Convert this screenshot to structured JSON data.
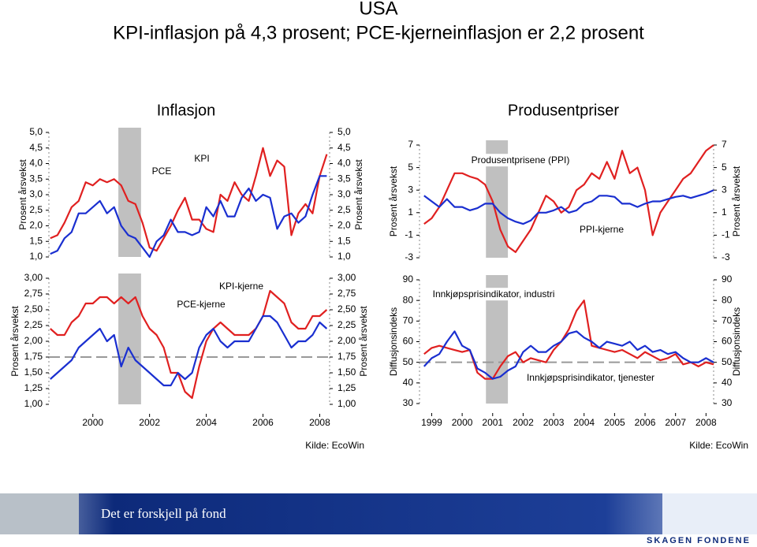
{
  "header": {
    "title": "USA",
    "subtitle": "KPI-inflasjon på 4,3 prosent; PCE-kjerneinflasjon er 2,2 prosent"
  },
  "chart_data": [
    {
      "type": "line",
      "title": "Inflasjon",
      "ylabel": "Prosent årsvekst",
      "y2label": "Prosent årsvekst",
      "xlim": [
        1998.45,
        2008.35
      ],
      "ylim": [
        1,
        5
      ],
      "yticks": [
        {
          "value": 1,
          "label": "1,0"
        },
        {
          "value": 1.5,
          "label": "1,5"
        },
        {
          "value": 2,
          "label": "2,0"
        },
        {
          "value": 2.5,
          "label": "2,5"
        },
        {
          "value": 3,
          "label": "3,0"
        },
        {
          "value": 3.5,
          "label": "3,5"
        },
        {
          "value": 4,
          "label": "4,0"
        },
        {
          "value": 4.5,
          "label": "4,5"
        },
        {
          "value": 5,
          "label": "5,0"
        }
      ],
      "recession": [
        2000.9,
        2001.7
      ],
      "x": [
        1998.5,
        1998.75,
        1999,
        1999.25,
        1999.5,
        1999.75,
        2000,
        2000.25,
        2000.5,
        2000.75,
        2001,
        2001.25,
        2001.5,
        2001.75,
        2002,
        2002.25,
        2002.5,
        2002.75,
        2003,
        2003.25,
        2003.5,
        2003.75,
        2004,
        2004.25,
        2004.5,
        2004.75,
        2005,
        2005.25,
        2005.5,
        2005.75,
        2006,
        2006.25,
        2006.5,
        2006.75,
        2007,
        2007.25,
        2007.5,
        2007.75,
        2008,
        2008.25
      ],
      "series": [
        {
          "name": "KPI",
          "color": "#e02020",
          "values": [
            1.6,
            1.7,
            2.1,
            2.6,
            2.8,
            3.4,
            3.3,
            3.5,
            3.4,
            3.5,
            3.3,
            2.8,
            2.7,
            2.1,
            1.3,
            1.2,
            1.6,
            2.0,
            2.5,
            2.9,
            2.2,
            2.2,
            1.9,
            1.8,
            3.0,
            2.8,
            3.4,
            3.0,
            2.8,
            3.6,
            4.5,
            3.6,
            4.1,
            3.9,
            1.7,
            2.4,
            2.7,
            2.4,
            3.6,
            4.3
          ]
        },
        {
          "name": "PCE",
          "color": "#1a2fd0",
          "values": [
            1.1,
            1.2,
            1.6,
            1.8,
            2.4,
            2.4,
            2.6,
            2.8,
            2.4,
            2.6,
            2.0,
            1.7,
            1.6,
            1.3,
            1.0,
            1.5,
            1.7,
            2.2,
            1.8,
            1.8,
            1.7,
            1.8,
            2.6,
            2.3,
            2.8,
            2.3,
            2.3,
            2.9,
            3.2,
            2.8,
            3.0,
            2.9,
            1.9,
            2.3,
            2.4,
            2.1,
            2.3,
            3.0,
            3.6,
            3.6
          ]
        }
      ]
    },
    {
      "type": "line",
      "ylabel": "Prosent årsvekst",
      "y2label": "Prosent årsvekst",
      "source": "Kilde: EcoWin",
      "xlim": [
        1998.45,
        2008.35
      ],
      "xticks": [
        2000,
        2002,
        2004,
        2006,
        2008
      ],
      "ylim": [
        1,
        3
      ],
      "yticks": [
        {
          "value": 1,
          "label": "1,00"
        },
        {
          "value": 1.25,
          "label": "1,25"
        },
        {
          "value": 1.5,
          "label": "1,50"
        },
        {
          "value": 1.75,
          "label": "1,75"
        },
        {
          "value": 2,
          "label": "2,00"
        },
        {
          "value": 2.25,
          "label": "2,25"
        },
        {
          "value": 2.5,
          "label": "2,50"
        },
        {
          "value": 2.75,
          "label": "2,75"
        },
        {
          "value": 3,
          "label": "3,00"
        }
      ],
      "recession": [
        2000.9,
        2001.7
      ],
      "hline": 1.75,
      "x": [
        1998.5,
        1998.75,
        1999,
        1999.25,
        1999.5,
        1999.75,
        2000,
        2000.25,
        2000.5,
        2000.75,
        2001,
        2001.25,
        2001.5,
        2001.75,
        2002,
        2002.25,
        2002.5,
        2002.75,
        2003,
        2003.25,
        2003.5,
        2003.75,
        2004,
        2004.25,
        2004.5,
        2004.75,
        2005,
        2005.25,
        2005.5,
        2005.75,
        2006,
        2006.25,
        2006.5,
        2006.75,
        2007,
        2007.25,
        2007.5,
        2007.75,
        2008,
        2008.25
      ],
      "series": [
        {
          "name": "KPI-kjerne",
          "color": "#e02020",
          "values": [
            2.2,
            2.1,
            2.1,
            2.3,
            2.4,
            2.6,
            2.6,
            2.7,
            2.7,
            2.6,
            2.7,
            2.6,
            2.7,
            2.4,
            2.2,
            2.1,
            1.9,
            1.5,
            1.5,
            1.2,
            1.1,
            1.6,
            2.0,
            2.2,
            2.3,
            2.2,
            2.1,
            2.1,
            2.1,
            2.2,
            2.4,
            2.8,
            2.7,
            2.6,
            2.3,
            2.2,
            2.2,
            2.4,
            2.4,
            2.5
          ]
        },
        {
          "name": "PCE-kjerne",
          "color": "#1a2fd0",
          "values": [
            1.4,
            1.5,
            1.6,
            1.7,
            1.9,
            2.0,
            2.1,
            2.2,
            2.0,
            2.1,
            1.6,
            1.9,
            1.7,
            1.6,
            1.5,
            1.4,
            1.3,
            1.3,
            1.5,
            1.4,
            1.5,
            1.9,
            2.1,
            2.2,
            2.0,
            1.9,
            2.0,
            2.0,
            2.0,
            2.2,
            2.4,
            2.4,
            2.3,
            2.1,
            1.9,
            2.0,
            2.0,
            2.1,
            2.3,
            2.2
          ]
        }
      ]
    },
    {
      "type": "line",
      "title": "Produsentpriser",
      "ylabel": "Prosent årsvekst",
      "y2label": "Prosent årsvekst",
      "xlim": [
        1998.6,
        2008.25
      ],
      "ylim": [
        -3,
        7
      ],
      "yticks": [
        -3,
        -1,
        1,
        3,
        5,
        7
      ],
      "recession": [
        2000.78,
        2001.5
      ],
      "x": [
        1998.75,
        1999,
        1999.25,
        1999.5,
        1999.75,
        2000,
        2000.25,
        2000.5,
        2000.75,
        2001,
        2001.25,
        2001.5,
        2001.75,
        2002,
        2002.25,
        2002.5,
        2002.75,
        2003,
        2003.25,
        2003.5,
        2003.75,
        2004,
        2004.25,
        2004.5,
        2004.75,
        2005,
        2005.25,
        2005.5,
        2005.75,
        2006,
        2006.25,
        2006.5,
        2006.75,
        2007,
        2007.25,
        2007.5,
        2007.75,
        2008,
        2008.25
      ],
      "series": [
        {
          "name": "Produsentprisene (PPI)",
          "color": "#e02020",
          "values": [
            0.0,
            0.5,
            1.5,
            3.0,
            4.5,
            4.5,
            4.2,
            4.0,
            3.5,
            2.0,
            -0.5,
            -2.0,
            -2.5,
            -1.5,
            -0.5,
            1.0,
            2.5,
            2.0,
            1.0,
            1.5,
            3.0,
            3.5,
            4.5,
            4.0,
            5.5,
            4.0,
            6.5,
            4.5,
            5.0,
            3.0,
            -1.0,
            1.0,
            2.0,
            3.0,
            4.0,
            4.5,
            5.5,
            6.5,
            7.0
          ]
        },
        {
          "name": "PPI-kjerne",
          "color": "#1a2fd0",
          "values": [
            2.5,
            2.0,
            1.5,
            2.2,
            1.5,
            1.5,
            1.2,
            1.4,
            1.8,
            1.8,
            1.0,
            0.5,
            0.2,
            0.0,
            0.3,
            1.0,
            1.0,
            1.2,
            1.5,
            1.0,
            1.2,
            1.8,
            2.0,
            2.5,
            2.5,
            2.4,
            1.8,
            1.8,
            1.5,
            1.8,
            2.0,
            2.0,
            2.2,
            2.4,
            2.5,
            2.3,
            2.5,
            2.7,
            3.0
          ]
        }
      ]
    },
    {
      "type": "line",
      "ylabel": "Diffusjonsindeks",
      "y2label": "Diffusjonsindeks",
      "source": "Kilde: EcoWin",
      "xlim": [
        1998.6,
        2008.25
      ],
      "xticks": [
        1999,
        2000,
        2001,
        2002,
        2003,
        2004,
        2005,
        2006,
        2007,
        2008
      ],
      "ylim": [
        30,
        90
      ],
      "yticks": [
        30,
        40,
        50,
        60,
        70,
        80,
        90
      ],
      "recession": [
        2000.78,
        2001.5
      ],
      "hline": 50,
      "x": [
        1998.75,
        1999,
        1999.25,
        1999.5,
        1999.75,
        2000,
        2000.25,
        2000.5,
        2000.75,
        2001,
        2001.25,
        2001.5,
        2001.75,
        2002,
        2002.25,
        2002.5,
        2002.75,
        2003,
        2003.25,
        2003.5,
        2003.75,
        2004,
        2004.25,
        2004.5,
        2004.75,
        2005,
        2005.25,
        2005.5,
        2005.75,
        2006,
        2006.25,
        2006.5,
        2006.75,
        2007,
        2007.25,
        2007.5,
        2007.75,
        2008,
        2008.25
      ],
      "series": [
        {
          "name": "Innkjøpsprisindikator, industri",
          "color": "#e02020",
          "values": [
            54,
            57,
            58,
            57,
            56,
            55,
            56,
            45,
            42,
            42,
            48,
            53,
            55,
            50,
            52,
            51,
            50,
            56,
            60,
            66,
            75,
            80,
            58,
            57,
            56,
            55,
            56,
            54,
            52,
            55,
            53,
            51,
            52,
            54,
            49,
            50,
            48,
            50,
            49
          ]
        },
        {
          "name": "Innkjøpsprisindikator, tjenester",
          "color": "#1a2fd0",
          "values": [
            48,
            52,
            54,
            60,
            65,
            58,
            56,
            47,
            45,
            42,
            43,
            46,
            48,
            55,
            58,
            55,
            55,
            58,
            60,
            64,
            65,
            62,
            60,
            57,
            60,
            59,
            58,
            60,
            56,
            58,
            55,
            56,
            54,
            55,
            52,
            50,
            50,
            52,
            50
          ]
        }
      ]
    }
  ],
  "footer": {
    "slogan": "Det er forskjell på fond",
    "brand": "SKAGEN FONDENE"
  }
}
